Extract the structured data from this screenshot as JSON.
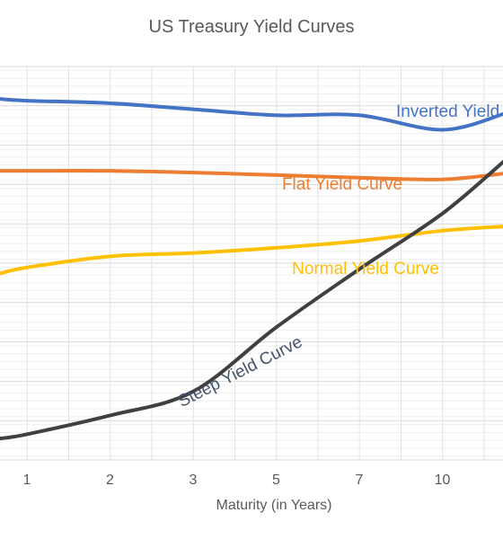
{
  "chart_data": {
    "type": "line",
    "title": "US Treasury Yield Curves",
    "xlabel": "Maturity  (in Years)",
    "ylabel": "",
    "categories": [
      "1",
      "2",
      "3",
      "5",
      "7",
      "10"
    ],
    "grid": true,
    "series": [
      {
        "name": "Inverted Yield Curve",
        "color": "#4472C4",
        "values": [
          0.9,
          0.87,
          0.8,
          0.73,
          0.73,
          0.56
        ]
      },
      {
        "name": "Flat Yield Curve",
        "color": "#ED7D31",
        "values": [
          0.08,
          0.08,
          0.06,
          0.03,
          0.0,
          -0.02
        ]
      },
      {
        "name": "Normal Yield Curve",
        "color": "#FFC000",
        "values": [
          -1.05,
          -0.92,
          -0.88,
          -0.82,
          -0.74,
          -0.62
        ]
      },
      {
        "name": "Steep Yield Curve",
        "color": "#404040",
        "values": [
          -3.0,
          -2.78,
          -2.5,
          -1.75,
          -1.07,
          -0.42
        ]
      }
    ]
  }
}
